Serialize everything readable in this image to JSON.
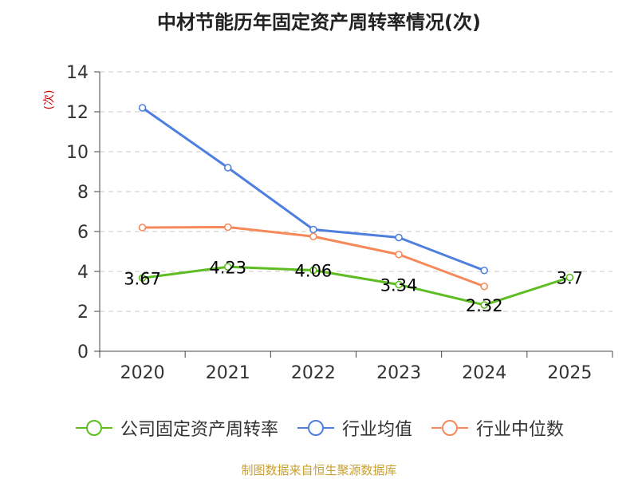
{
  "title": "中材节能历年固定资产周转率情况(次)",
  "source": "制图数据来自恒生聚源数据库",
  "chart_data": {
    "type": "line",
    "title": "中材节能历年固定资产周转率情况(次)",
    "ylabel": "(次)",
    "xlabel": "",
    "ylim": [
      0,
      14
    ],
    "yticks": [
      0,
      2,
      4,
      6,
      8,
      10,
      12,
      14
    ],
    "grid": true,
    "legend_position": "bottom",
    "categories": [
      "2020",
      "2021",
      "2022",
      "2023",
      "2024",
      "2025"
    ],
    "series": [
      {
        "name": "公司固定资产周转率",
        "color": "#5dbd22",
        "values": [
          3.67,
          4.23,
          4.06,
          3.34,
          2.32,
          3.7
        ],
        "labels": [
          "3.67",
          "4.23",
          "4.06",
          "3.34",
          "2.32",
          "3.7"
        ]
      },
      {
        "name": "行业均值",
        "color": "#4f7fde",
        "values": [
          12.2,
          9.2,
          6.1,
          5.7,
          4.05,
          null
        ]
      },
      {
        "name": "行业中位数",
        "color": "#f5895a",
        "values": [
          6.2,
          6.22,
          5.75,
          4.85,
          3.25,
          null
        ]
      }
    ]
  }
}
